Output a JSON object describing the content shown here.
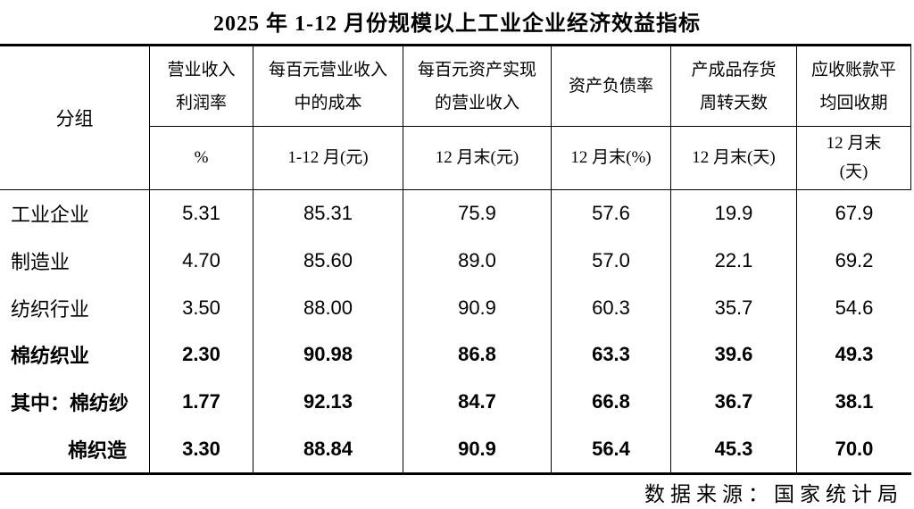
{
  "title": "2025 年 1-12 月份规模以上工业企业经济效益指标",
  "source": "数据来源：国家统计局",
  "colors": {
    "text": "#000000",
    "border": "#000000",
    "background": "#ffffff"
  },
  "table": {
    "group_header": "分组",
    "columns": [
      {
        "title_lines": [
          "营业收入",
          "利润率"
        ],
        "sub_lines": [
          "%"
        ]
      },
      {
        "title_lines": [
          "每百元营业收入",
          "中的成本"
        ],
        "sub_lines": [
          "1-12 月(元)"
        ]
      },
      {
        "title_lines": [
          "每百元资产实现",
          "的营业收入"
        ],
        "sub_lines": [
          "12 月末(元)"
        ]
      },
      {
        "title_lines": [
          "资产负债率"
        ],
        "sub_lines": [
          "12 月末(%)"
        ]
      },
      {
        "title_lines": [
          "产成品存货",
          "周转天数"
        ],
        "sub_lines": [
          "12 月末(天)"
        ]
      },
      {
        "title_lines": [
          "应收账款平",
          "均回收期"
        ],
        "sub_lines": [
          "12 月末",
          "(天)"
        ]
      }
    ],
    "rows": [
      {
        "label": "工业企业",
        "values": [
          "5.31",
          "85.31",
          "75.9",
          "57.6",
          "19.9",
          "67.9"
        ]
      },
      {
        "label": "制造业",
        "values": [
          "4.70",
          "85.60",
          "89.0",
          "57.0",
          "22.1",
          "69.2"
        ]
      },
      {
        "label": "纺织行业",
        "values": [
          "3.50",
          "88.00",
          "90.9",
          "60.3",
          "35.7",
          "54.6"
        ]
      },
      {
        "label": "棉纺织业",
        "values": [
          "2.30",
          "90.98",
          "86.8",
          "63.3",
          "39.6",
          "49.3"
        ]
      },
      {
        "label": "其中：棉纺纱",
        "values": [
          "1.77",
          "92.13",
          "84.7",
          "66.8",
          "36.7",
          "38.1"
        ]
      },
      {
        "label": "棉织造",
        "values": [
          "3.30",
          "88.84",
          "90.9",
          "56.4",
          "45.3",
          "70.0"
        ]
      }
    ]
  },
  "chart_data": {
    "type": "table",
    "title": "2025 年 1-12 月份规模以上工业企业经济效益指标",
    "columns": [
      "分组",
      "营业收入利润率 (%)",
      "每百元营业收入中的成本 1-12月(元)",
      "每百元资产实现的营业收入 12月末(元)",
      "资产负债率 12月末(%)",
      "产成品存货周转天数 12月末(天)",
      "应收账款平均回收期 12月末(天)"
    ],
    "rows": [
      {
        "group": "工业企业",
        "values": [
          5.31,
          85.31,
          75.9,
          57.6,
          19.9,
          67.9
        ],
        "bold": false
      },
      {
        "group": "制造业",
        "values": [
          4.7,
          85.6,
          89.0,
          57.0,
          22.1,
          69.2
        ],
        "bold": false
      },
      {
        "group": "纺织行业",
        "values": [
          3.5,
          88.0,
          90.9,
          60.3,
          35.7,
          54.6
        ],
        "bold": false
      },
      {
        "group": "棉纺织业",
        "values": [
          2.3,
          90.98,
          86.8,
          63.3,
          39.6,
          49.3
        ],
        "bold": true
      },
      {
        "group": "其中：棉纺纱",
        "values": [
          1.77,
          92.13,
          84.7,
          66.8,
          36.7,
          38.1
        ],
        "bold": true
      },
      {
        "group": "棉织造",
        "values": [
          3.3,
          88.84,
          90.9,
          56.4,
          45.3,
          70.0
        ],
        "bold": true
      }
    ],
    "source": "数据来源：国家统计局",
    "layout": {
      "grid": "header-rows-boxed, no-horizontal-lines-between-data-rows",
      "legend_position": "none"
    }
  }
}
